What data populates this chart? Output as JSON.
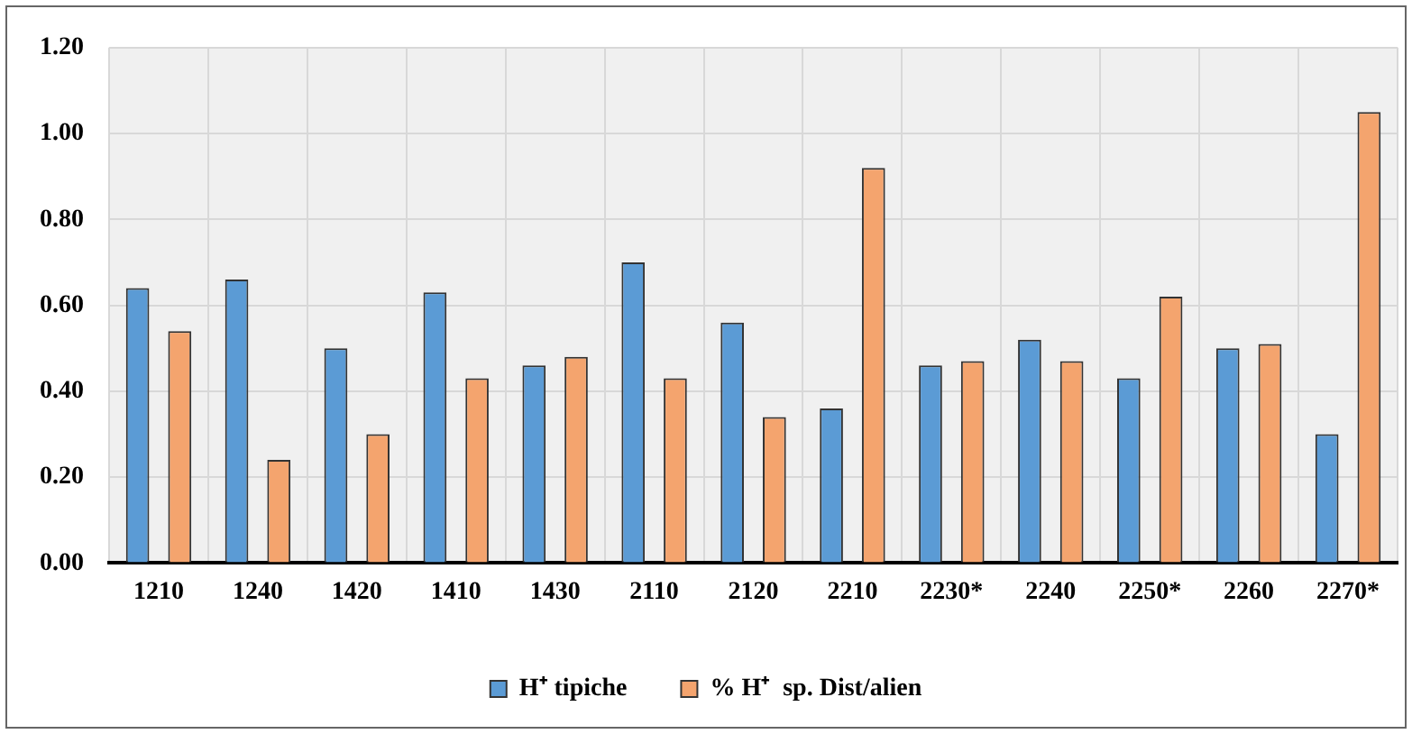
{
  "chart_data": {
    "type": "bar",
    "categories": [
      "1210",
      "1240",
      "1420",
      "1410",
      "1430",
      "2110",
      "2120",
      "2210",
      "2230*",
      "2240",
      "2250*",
      "2260",
      "2270*"
    ],
    "series": [
      {
        "name": "H⁺ tipiche",
        "color": "#5b9bd5",
        "values": [
          0.64,
          0.66,
          0.5,
          0.63,
          0.46,
          0.7,
          0.56,
          0.36,
          0.46,
          0.52,
          0.43,
          0.5,
          0.3
        ]
      },
      {
        "name": "% H⁺  sp. Dist/alien",
        "color": "#f4a46e",
        "values": [
          0.54,
          0.24,
          0.3,
          0.43,
          0.48,
          0.43,
          0.34,
          0.92,
          0.47,
          0.47,
          0.62,
          0.51,
          1.05
        ]
      }
    ],
    "ylim": [
      0,
      1.2
    ],
    "yticks": [
      {
        "value": 0,
        "label": "0.00"
      },
      {
        "value": 0.2,
        "label": "0.20"
      },
      {
        "value": 0.4,
        "label": "0.40"
      },
      {
        "value": 0.6,
        "label": "0.60"
      },
      {
        "value": 0.8,
        "label": "0.80"
      },
      {
        "value": 1,
        "label": "1.00"
      },
      {
        "value": 1.2,
        "label": "1.20"
      }
    ],
    "grid": true,
    "legend": "bottom"
  }
}
